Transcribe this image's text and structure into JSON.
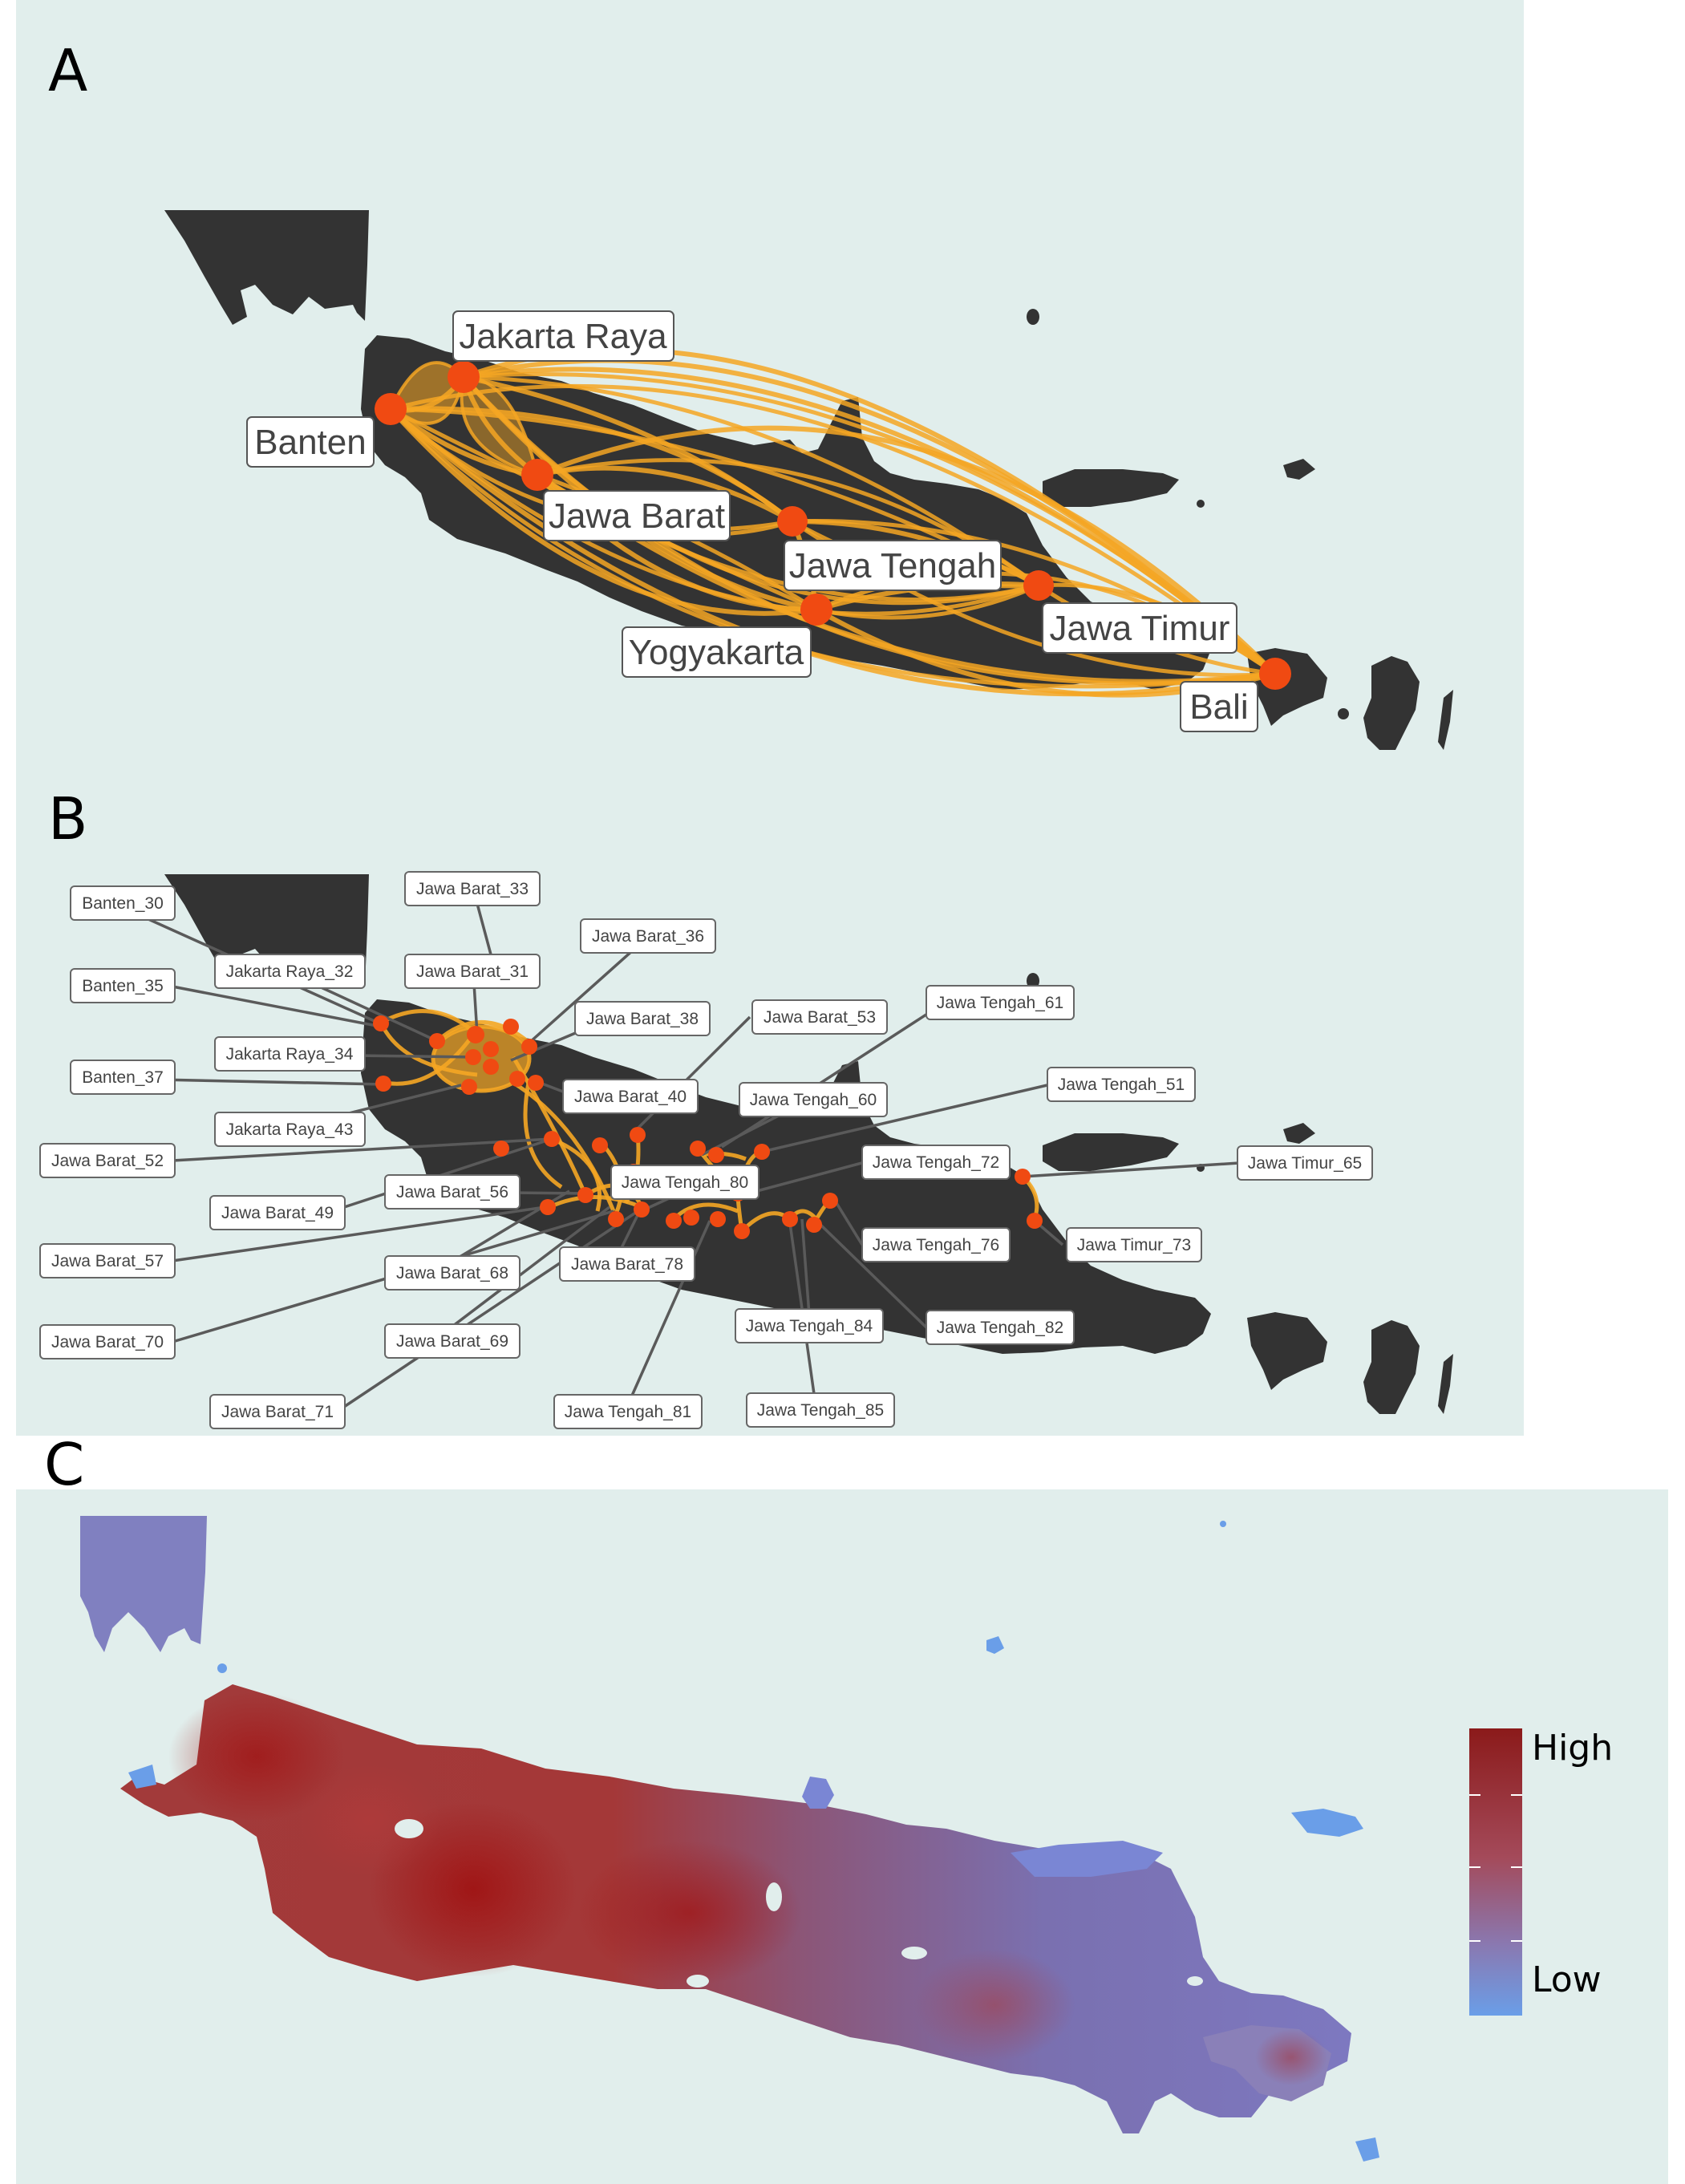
{
  "panels": [
    {
      "letter": "A"
    },
    {
      "letter": "B"
    },
    {
      "letter": "C"
    }
  ],
  "panel_a": {
    "nodes": [
      {
        "id": "banten",
        "label": "Banten"
      },
      {
        "id": "jakarta",
        "label": "Jakarta Raya"
      },
      {
        "id": "jabar",
        "label": "Jawa Barat"
      },
      {
        "id": "jateng",
        "label": "Jawa Tengah"
      },
      {
        "id": "yogya",
        "label": "Yogyakarta"
      },
      {
        "id": "jatim",
        "label": "Jawa Timur"
      },
      {
        "id": "bali",
        "label": "Bali"
      }
    ]
  },
  "panel_b": {
    "labels": [
      "Banten_30",
      "Banten_35",
      "Banten_37",
      "Jawa Barat_33",
      "Jawa Barat_36",
      "Jakarta Raya_32",
      "Jawa Barat_31",
      "Jakarta Raya_34",
      "Jawa Barat_38",
      "Jawa Barat_53",
      "Jawa Tengah_61",
      "Jakarta Raya_43",
      "Jawa Barat_40",
      "Jawa Tengah_60",
      "Jawa Tengah_51",
      "Jawa Barat_52",
      "Jawa Tengah_72",
      "Jawa Timur_65",
      "Jawa Barat_56",
      "Jawa Tengah_80",
      "Jawa Barat_49",
      "Jawa Tengah_76",
      "Jawa Timur_73",
      "Jawa Barat_57",
      "Jawa Barat_68",
      "Jawa Barat_78",
      "Jawa Tengah_84",
      "Jawa Tengah_82",
      "Jawa Barat_70",
      "Jawa Barat_69",
      "Jawa Barat_71",
      "Jawa Tengah_81",
      "Jawa Tengah_85"
    ]
  },
  "panel_c": {
    "legend": {
      "high": "High",
      "low": "Low",
      "color_high": "#8b1a1a",
      "color_low": "#6a9ee8"
    }
  },
  "colors": {
    "background": "#e1eeec",
    "land": "#333333",
    "edge": "#f5a623",
    "node": "#f04a12"
  }
}
